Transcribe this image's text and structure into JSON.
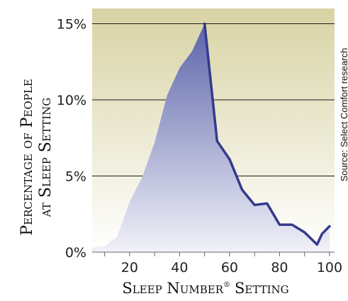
{
  "chart_data": {
    "type": "area",
    "ylabel_line1": "Percentage of People",
    "ylabel_line2": "at Sleep Setting",
    "xlabel_main": "Sleep Number",
    "xlabel_reg": "®",
    "xlabel_tail": "Setting",
    "source": "Source: Select Comfort research",
    "xlim": [
      5,
      102
    ],
    "ylim": [
      0,
      16
    ],
    "x_ticks": [
      20,
      40,
      60,
      80,
      100
    ],
    "y_ticks": [
      0,
      5,
      10,
      15
    ],
    "y_tick_labels": [
      "0%",
      "5%",
      "10%",
      "15%"
    ],
    "grid": true,
    "colors": {
      "bg_top": "#d8d3a4",
      "bg_bottom": "#ffffff",
      "area_top": "#5b64aa",
      "area_bottom": "#f1f1f8",
      "edge": "#343a8c"
    },
    "series": [
      {
        "points": [
          [
            5,
            0.3
          ],
          [
            10,
            0.4
          ],
          [
            15,
            1.0
          ],
          [
            20,
            3.3
          ],
          [
            25,
            4.9
          ],
          [
            30,
            7.2
          ],
          [
            35,
            10.3
          ],
          [
            40,
            12.1
          ],
          [
            45,
            13.2
          ],
          [
            50,
            15.0
          ],
          [
            55,
            7.3
          ],
          [
            60,
            6.1
          ],
          [
            65,
            4.1
          ],
          [
            70,
            3.1
          ],
          [
            75,
            3.2
          ],
          [
            80,
            1.8
          ],
          [
            85,
            1.8
          ],
          [
            90,
            1.3
          ],
          [
            95,
            0.5
          ],
          [
            97,
            1.2
          ],
          [
            100,
            1.7
          ],
          [
            100,
            0
          ]
        ]
      }
    ]
  }
}
